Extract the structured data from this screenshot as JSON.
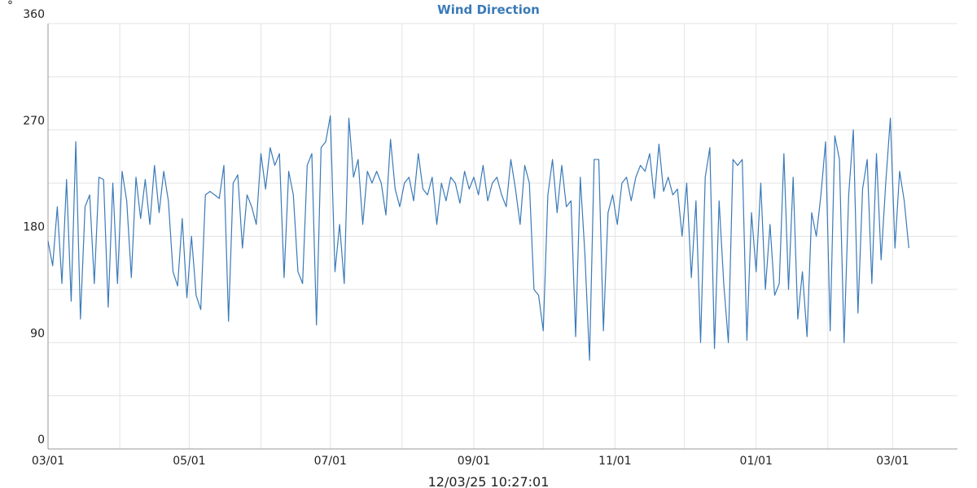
{
  "chart_data": {
    "type": "line",
    "title": "Wind Direction",
    "ylabel": "°",
    "footer": "12/03/25 10:27:01",
    "color": "#3a7ab8",
    "grid": true,
    "xlim": [
      0,
      393
    ],
    "xticks": [
      {
        "value": 0,
        "label": "03/01"
      },
      {
        "value": 61,
        "label": "05/01"
      },
      {
        "value": 122,
        "label": "07/01"
      },
      {
        "value": 184,
        "label": "09/01"
      },
      {
        "value": 245,
        "label": "11/01"
      },
      {
        "value": 306,
        "label": "01/01"
      },
      {
        "value": 365,
        "label": "03/01"
      }
    ],
    "xminor": [
      31,
      92,
      153,
      214,
      275,
      337
    ],
    "ylim": [
      0,
      360
    ],
    "yticks": [
      0,
      90,
      180,
      270,
      360
    ],
    "yminor": [
      45,
      135,
      225,
      315
    ],
    "x": [
      0,
      2,
      4,
      6,
      8,
      10,
      12,
      14,
      16,
      18,
      20,
      22,
      24,
      26,
      28,
      30,
      32,
      34,
      36,
      38,
      40,
      42,
      44,
      46,
      48,
      50,
      52,
      54,
      56,
      58,
      60,
      62,
      64,
      66,
      68,
      70,
      72,
      74,
      76,
      78,
      80,
      82,
      84,
      86,
      88,
      90,
      92,
      94,
      96,
      98,
      100,
      102,
      104,
      106,
      108,
      110,
      112,
      114,
      116,
      118,
      120,
      122,
      124,
      126,
      128,
      130,
      132,
      134,
      136,
      138,
      140,
      142,
      144,
      146,
      148,
      150,
      152,
      154,
      156,
      158,
      160,
      162,
      164,
      166,
      168,
      170,
      172,
      174,
      176,
      178,
      180,
      182,
      184,
      186,
      188,
      190,
      192,
      194,
      196,
      198,
      200,
      202,
      204,
      206,
      208,
      210,
      212,
      214,
      216,
      218,
      220,
      222,
      224,
      226,
      228,
      230,
      232,
      234,
      236,
      238,
      240,
      242,
      244,
      246,
      248,
      250,
      252,
      254,
      256,
      258,
      260,
      262,
      264,
      266,
      268,
      270,
      272,
      274,
      276,
      278,
      280,
      282,
      284,
      286,
      288,
      290,
      292,
      294,
      296,
      298,
      300,
      302,
      304,
      306,
      308,
      310,
      312,
      314,
      316,
      318,
      320,
      322,
      324,
      326,
      328,
      330,
      332,
      334,
      336,
      338,
      340,
      342,
      344,
      346,
      348,
      350,
      352,
      354,
      356,
      358,
      360,
      362,
      364,
      366,
      368,
      370,
      372
    ],
    "values": [
      176,
      155,
      205,
      140,
      228,
      125,
      260,
      110,
      205,
      215,
      140,
      230,
      228,
      120,
      225,
      140,
      235,
      210,
      145,
      230,
      195,
      228,
      190,
      240,
      200,
      235,
      210,
      150,
      138,
      195,
      128,
      180,
      130,
      118,
      215,
      218,
      215,
      212,
      240,
      108,
      225,
      232,
      170,
      215,
      205,
      190,
      250,
      220,
      255,
      240,
      250,
      145,
      235,
      215,
      150,
      140,
      240,
      250,
      105,
      255,
      260,
      282,
      150,
      190,
      140,
      280,
      230,
      245,
      190,
      235,
      225,
      235,
      225,
      198,
      262,
      220,
      205,
      225,
      230,
      210,
      250,
      220,
      215,
      230,
      190,
      225,
      210,
      230,
      225,
      208,
      235,
      220,
      230,
      215,
      240,
      210,
      225,
      230,
      215,
      205,
      245,
      220,
      190,
      240,
      225,
      135,
      130,
      100,
      215,
      245,
      200,
      240,
      205,
      210,
      95,
      230,
      165,
      75,
      245,
      245,
      100,
      200,
      215,
      190,
      225,
      230,
      210,
      230,
      240,
      235,
      250,
      212,
      258,
      218,
      230,
      215,
      220,
      180,
      225,
      145,
      210,
      90,
      230,
      255,
      85,
      210,
      140,
      90,
      245,
      240,
      245,
      92,
      200,
      150,
      225,
      135,
      190,
      130,
      140,
      250,
      135,
      230,
      110,
      150,
      95,
      200,
      180,
      215,
      260,
      100,
      265,
      245,
      90,
      215,
      270,
      115,
      220,
      245,
      140,
      250,
      160,
      225,
      280,
      170,
      235,
      210,
      170
    ]
  }
}
